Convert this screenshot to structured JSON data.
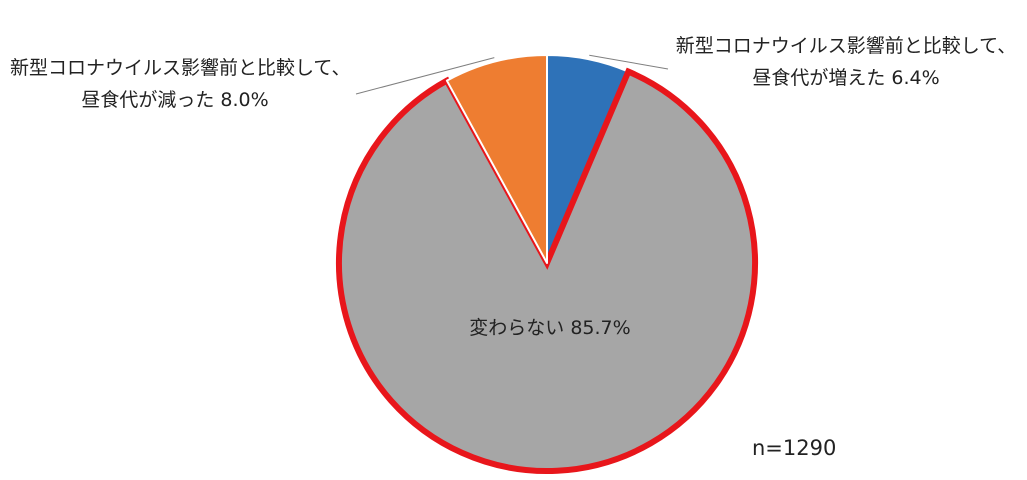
{
  "chart_data": {
    "type": "pie",
    "slices": [
      {
        "label_lines": [
          "新型コロナウイルス影響前と比較して、",
          "昼食代が増えた 6.4%"
        ],
        "value": 6.4,
        "color": "#2e72b8",
        "highlight": false
      },
      {
        "label_lines": [
          "変わらない 85.7%"
        ],
        "value": 85.7,
        "color": "#a6a6a6",
        "highlight": true
      },
      {
        "label_lines": [
          "新型コロナウイルス影響前と比較して、",
          "昼食代が減った 8.0%"
        ],
        "value": 8.0,
        "color": "#ee7d31",
        "highlight": false
      }
    ],
    "start": "12 o'clock, clockwise",
    "highlight_color": "#e8161b",
    "note": "n=1290",
    "legend": "none (leader labels)"
  }
}
